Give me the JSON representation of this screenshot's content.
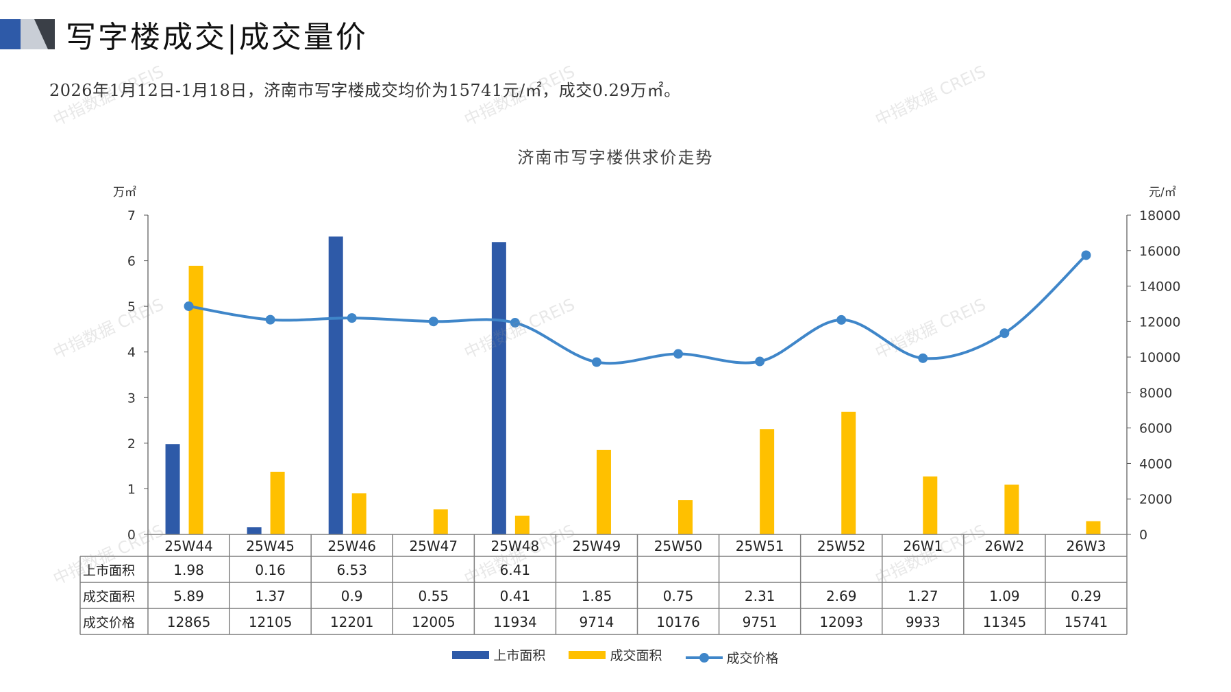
{
  "header": {
    "title": "写字楼成交|成交量价",
    "summary": "2026年1月12日-1月18日，济南市写字楼成交均价为15741元/㎡，成交0.29万㎡。"
  },
  "watermark_text": "中指数据 CREIS",
  "colors": {
    "listed_bar": "#2E5AA8",
    "deal_bar": "#FFC000",
    "price_line": "#3F86C9",
    "table_border": "#7f7f7f"
  },
  "chart_data": {
    "type": "bar",
    "title": "济南市写字楼供求价走势",
    "left_axis_unit": "万㎡",
    "right_axis_unit": "元/㎡",
    "ylim_left": [
      0,
      7
    ],
    "ylim_right": [
      0,
      18000
    ],
    "left_ticks": [
      "0",
      "1",
      "2",
      "3",
      "4",
      "5",
      "6",
      "7"
    ],
    "right_ticks": [
      "0",
      "2000",
      "4000",
      "6000",
      "8000",
      "10000",
      "12000",
      "14000",
      "16000",
      "18000"
    ],
    "categories": [
      "25W44",
      "25W45",
      "25W46",
      "25W47",
      "25W48",
      "25W49",
      "25W50",
      "25W51",
      "25W52",
      "26W1",
      "26W2",
      "26W3"
    ],
    "series": [
      {
        "name": "上市面积",
        "kind": "bar",
        "axis": "left",
        "values": [
          1.98,
          0.16,
          6.53,
          null,
          6.41,
          null,
          null,
          null,
          null,
          null,
          null,
          null
        ],
        "labels": [
          "1.98",
          "0.16",
          "6.53",
          "",
          "6.41",
          "",
          "",
          "",
          "",
          "",
          "",
          ""
        ]
      },
      {
        "name": "成交面积",
        "kind": "bar",
        "axis": "left",
        "values": [
          5.89,
          1.37,
          0.9,
          0.55,
          0.41,
          1.85,
          0.75,
          2.31,
          2.69,
          1.27,
          1.09,
          0.29
        ],
        "labels": [
          "5.89",
          "1.37",
          "0.9",
          "0.55",
          "0.41",
          "1.85",
          "0.75",
          "2.31",
          "2.69",
          "1.27",
          "1.09",
          "0.29"
        ]
      },
      {
        "name": "成交价格",
        "kind": "line",
        "axis": "right",
        "values": [
          12865,
          12105,
          12201,
          12005,
          11934,
          9714,
          10176,
          9751,
          12093,
          9933,
          11345,
          15741
        ],
        "labels": [
          "12865",
          "12105",
          "12201",
          "12005",
          "11934",
          "9714",
          "10176",
          "9751",
          "12093",
          "9933",
          "11345",
          "15741"
        ]
      }
    ],
    "legend_position": "bottom",
    "grid": false
  }
}
